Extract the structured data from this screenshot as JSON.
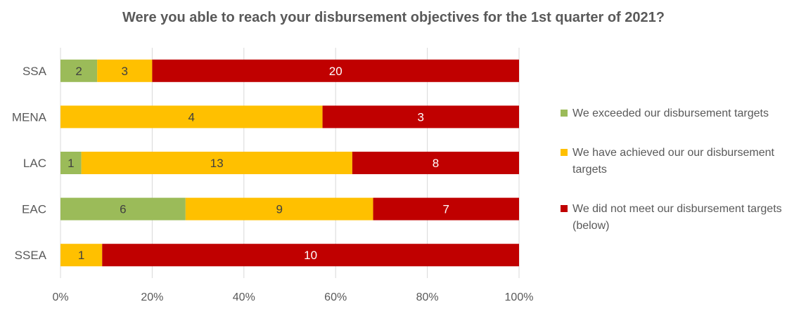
{
  "chart_data": {
    "type": "bar",
    "orientation": "horizontal",
    "stacked": "percent",
    "title": "Were you able to reach your disbursement objectives for the 1st quarter of 2021?",
    "categories": [
      "SSA",
      "MENA",
      "LAC",
      "EAC",
      "SSEA"
    ],
    "series": [
      {
        "name": "We exceeded our disbursement targets",
        "color": "#9bbb59",
        "values": [
          2,
          0,
          1,
          6,
          0
        ]
      },
      {
        "name": "We have achieved our our disbursement targets",
        "color": "#ffc000",
        "values": [
          3,
          4,
          13,
          9,
          1
        ]
      },
      {
        "name": "We did not meet our disbursement targets (below)",
        "color": "#c00000",
        "values": [
          20,
          3,
          8,
          7,
          10
        ]
      }
    ],
    "label_colors": [
      "#404040",
      "#404040",
      "#ffffff"
    ],
    "xticks": [
      "0%",
      "20%",
      "40%",
      "60%",
      "80%",
      "100%"
    ],
    "xlim": [
      0,
      100
    ],
    "grid": true,
    "legend_position": "right"
  }
}
